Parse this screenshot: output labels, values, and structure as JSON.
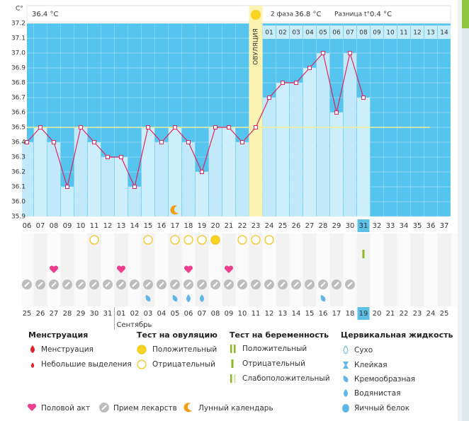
{
  "chart_data": {
    "type": "line",
    "y_unit": "C°",
    "header": {
      "first_phase": "36.4 °C",
      "second_phase_label": "2 фаза",
      "second_phase": "36.8 °C",
      "difference_label": "Разница t°",
      "difference": "0.4 °C"
    },
    "categories": [
      "06",
      "07",
      "08",
      "09",
      "10",
      "11",
      "12",
      "13",
      "14",
      "15",
      "16",
      "17",
      "18",
      "19",
      "20",
      "21",
      "22",
      "23",
      "24",
      "25",
      "26",
      "27",
      "28",
      "29",
      "30",
      "31",
      "32",
      "33",
      "34",
      "35",
      "36",
      "37"
    ],
    "values": [
      36.4,
      36.5,
      36.4,
      36.1,
      36.5,
      36.4,
      36.3,
      36.3,
      36.1,
      36.5,
      36.4,
      36.5,
      36.4,
      36.2,
      36.5,
      36.5,
      36.4,
      36.5,
      36.7,
      36.8,
      36.8,
      36.9,
      37.0,
      36.6,
      37.0,
      36.7,
      null,
      null,
      null,
      null,
      null,
      null
    ],
    "line_color": "#e0245e",
    "ylim": [
      35.9,
      37.2
    ],
    "yticks": [
      35.9,
      {
        "value": 36,
        "label": "36.0"
      },
      36.1,
      36.2,
      36.3,
      36.4,
      36.5,
      36.6,
      36.7,
      36.8,
      36.9,
      {
        "value": 37,
        "label": "37.0"
      },
      37.1,
      37.2
    ],
    "coverline": 36.5,
    "ovulation_day": 23,
    "ovulation_label": "ОВУЛЯЦИЯ",
    "dpo_labels": [
      "01",
      "02",
      "03",
      "04",
      "05",
      "06",
      "07",
      "08",
      "09",
      "10",
      "11",
      "12",
      "13",
      "14"
    ],
    "current_day": 31,
    "lunar_days": [
      17
    ],
    "ovulation_tests": {
      "positive": [
        20
      ],
      "negative": [
        11,
        15,
        17,
        18,
        19,
        22,
        23,
        24
      ]
    },
    "pregnancy_tests": {
      "positive": [
        31
      ]
    },
    "intercourse": [
      8,
      13,
      18,
      21
    ],
    "medication": [
      6,
      7,
      8,
      9,
      10,
      11,
      12,
      13,
      14,
      15,
      16,
      17,
      18,
      19,
      20,
      21,
      22,
      23,
      24,
      25,
      26,
      27,
      28,
      29,
      30
    ],
    "cervical_fluid": {
      "creamy": [
        15,
        17,
        28
      ],
      "watery": [
        18,
        19
      ]
    },
    "dates": [
      "25",
      "26",
      "27",
      "28",
      "29",
      "30",
      "31",
      "01",
      "02",
      "03",
      "04",
      "05",
      "06",
      "07",
      "08",
      "09",
      "10",
      "11",
      "12",
      "13",
      "14",
      "15",
      "16",
      "17",
      "18",
      "19",
      "20",
      "21",
      "22",
      "23",
      "24",
      "25"
    ],
    "dates_red": [
      false,
      true,
      true,
      false,
      false,
      false,
      false,
      false,
      true,
      true,
      false,
      false,
      false,
      false,
      false,
      true,
      true,
      false,
      false,
      false,
      false,
      false,
      true,
      true,
      false,
      false,
      false,
      false,
      false,
      true,
      true,
      false
    ],
    "month": "Сентябрь",
    "legend": {
      "groups": [
        {
          "title": "Менструация",
          "items": [
            "Менструация",
            "Небольшие выделения"
          ]
        },
        {
          "title": "Тест на овуляцию",
          "items": [
            "Положительный",
            "Отрицательный"
          ]
        },
        {
          "title": "Тест на беременность",
          "items": [
            "Положительный",
            "Отрицательный",
            "Слабоположительный"
          ]
        },
        {
          "title": "Цервикальная жидкость",
          "items": [
            "Сухо",
            "Клейкая",
            "Кремообразная",
            "Водянистая",
            "Яичный белок"
          ]
        }
      ],
      "extra": [
        "Половой акт",
        "Прием лекарств",
        "Лунный календарь"
      ]
    }
  }
}
